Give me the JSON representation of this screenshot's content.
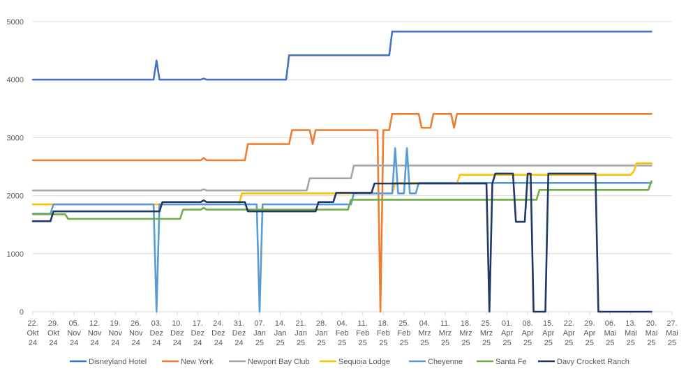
{
  "chart_data": {
    "type": "line",
    "title": "",
    "xlabel": "",
    "ylabel": "",
    "ylim": [
      0,
      5000
    ],
    "yticks": [
      0,
      1000,
      2000,
      3000,
      4000,
      5000
    ],
    "grid": true,
    "legend": "bottom",
    "x_range": [
      "2024-10-22",
      "2025-05-27"
    ],
    "xticks": [
      {
        "date": "2024-10-22",
        "top": "22.",
        "mid": "Okt",
        "bot": "24"
      },
      {
        "date": "2024-10-29",
        "top": "29.",
        "mid": "Okt",
        "bot": "24"
      },
      {
        "date": "2024-11-05",
        "top": "05.",
        "mid": "Nov",
        "bot": "24"
      },
      {
        "date": "2024-11-12",
        "top": "12.",
        "mid": "Nov",
        "bot": "24"
      },
      {
        "date": "2024-11-19",
        "top": "19.",
        "mid": "Nov",
        "bot": "24"
      },
      {
        "date": "2024-11-26",
        "top": "26.",
        "mid": "Nov",
        "bot": "24"
      },
      {
        "date": "2024-12-03",
        "top": "03.",
        "mid": "Dez",
        "bot": "24"
      },
      {
        "date": "2024-12-10",
        "top": "10.",
        "mid": "Dez",
        "bot": "24"
      },
      {
        "date": "2024-12-17",
        "top": "17.",
        "mid": "Dez",
        "bot": "24"
      },
      {
        "date": "2024-12-24",
        "top": "24.",
        "mid": "Dez",
        "bot": "24"
      },
      {
        "date": "2024-12-31",
        "top": "31.",
        "mid": "Dez",
        "bot": "24"
      },
      {
        "date": "2025-01-07",
        "top": "07.",
        "mid": "Jan",
        "bot": "25"
      },
      {
        "date": "2025-01-14",
        "top": "14.",
        "mid": "Jan",
        "bot": "25"
      },
      {
        "date": "2025-01-21",
        "top": "21.",
        "mid": "Jan",
        "bot": "25"
      },
      {
        "date": "2025-01-28",
        "top": "28.",
        "mid": "Jan",
        "bot": "25"
      },
      {
        "date": "2025-02-04",
        "top": "04.",
        "mid": "Feb",
        "bot": "25"
      },
      {
        "date": "2025-02-11",
        "top": "11.",
        "mid": "Feb",
        "bot": "25"
      },
      {
        "date": "2025-02-18",
        "top": "18.",
        "mid": "Feb",
        "bot": "25"
      },
      {
        "date": "2025-02-25",
        "top": "25.",
        "mid": "Feb",
        "bot": "25"
      },
      {
        "date": "2025-03-04",
        "top": "04.",
        "mid": "Mrz",
        "bot": "25"
      },
      {
        "date": "2025-03-11",
        "top": "11.",
        "mid": "Mrz",
        "bot": "25"
      },
      {
        "date": "2025-03-18",
        "top": "18.",
        "mid": "Mrz",
        "bot": "25"
      },
      {
        "date": "2025-03-25",
        "top": "25.",
        "mid": "Mrz",
        "bot": "25"
      },
      {
        "date": "2025-04-01",
        "top": "01.",
        "mid": "Apr",
        "bot": "25"
      },
      {
        "date": "2025-04-08",
        "top": "08.",
        "mid": "Apr",
        "bot": "25"
      },
      {
        "date": "2025-04-15",
        "top": "15.",
        "mid": "Apr",
        "bot": "25"
      },
      {
        "date": "2025-04-22",
        "top": "22.",
        "mid": "Apr",
        "bot": "25"
      },
      {
        "date": "2025-04-29",
        "top": "29.",
        "mid": "Apr",
        "bot": "25"
      },
      {
        "date": "2025-05-06",
        "top": "06.",
        "mid": "Mai",
        "bot": "25"
      },
      {
        "date": "2025-05-13",
        "top": "13.",
        "mid": "Mai",
        "bot": "25"
      },
      {
        "date": "2025-05-20",
        "top": "20.",
        "mid": "Mai",
        "bot": "25"
      },
      {
        "date": "2025-05-27",
        "top": "27.",
        "mid": "Mai",
        "bot": "25"
      }
    ],
    "series": [
      {
        "name": "Disneyland Hotel",
        "color": "#4472c4",
        "points": [
          [
            "2024-10-22",
            4000
          ],
          [
            "2024-12-02",
            4000
          ],
          [
            "2024-12-03",
            4330
          ],
          [
            "2024-12-04",
            4000
          ],
          [
            "2024-12-18",
            4000
          ],
          [
            "2024-12-19",
            4020
          ],
          [
            "2024-12-20",
            4000
          ],
          [
            "2025-01-16",
            4000
          ],
          [
            "2025-01-17",
            4420
          ],
          [
            "2025-02-20",
            4420
          ],
          [
            "2025-02-21",
            4830
          ],
          [
            "2025-05-20",
            4830
          ]
        ]
      },
      {
        "name": "New York",
        "color": "#ed7d31",
        "points": [
          [
            "2024-10-22",
            2610
          ],
          [
            "2024-12-18",
            2610
          ],
          [
            "2024-12-19",
            2650
          ],
          [
            "2024-12-20",
            2610
          ],
          [
            "2025-01-02",
            2610
          ],
          [
            "2025-01-03",
            2890
          ],
          [
            "2025-01-17",
            2890
          ],
          [
            "2025-01-18",
            3130
          ],
          [
            "2025-01-24",
            3130
          ],
          [
            "2025-01-25",
            2890
          ],
          [
            "2025-01-26",
            3130
          ],
          [
            "2025-02-16",
            3130
          ],
          [
            "2025-02-17",
            0
          ],
          [
            "2025-02-18",
            3130
          ],
          [
            "2025-02-20",
            3130
          ],
          [
            "2025-02-21",
            3410
          ],
          [
            "2025-03-02",
            3410
          ],
          [
            "2025-03-03",
            3170
          ],
          [
            "2025-03-06",
            3170
          ],
          [
            "2025-03-07",
            3410
          ],
          [
            "2025-03-13",
            3410
          ],
          [
            "2025-03-14",
            3170
          ],
          [
            "2025-03-15",
            3410
          ],
          [
            "2025-05-20",
            3410
          ]
        ]
      },
      {
        "name": "Newport Bay Club",
        "color": "#a5a5a5",
        "points": [
          [
            "2024-10-22",
            2090
          ],
          [
            "2024-12-18",
            2090
          ],
          [
            "2024-12-19",
            2110
          ],
          [
            "2024-12-20",
            2090
          ],
          [
            "2025-01-23",
            2090
          ],
          [
            "2025-01-24",
            2300
          ],
          [
            "2025-02-07",
            2300
          ],
          [
            "2025-02-08",
            2520
          ],
          [
            "2025-05-20",
            2520
          ]
        ]
      },
      {
        "name": "Sequoia Lodge",
        "color": "#ffc000",
        "points": [
          [
            "2024-10-22",
            1850
          ],
          [
            "2024-12-31",
            1850
          ],
          [
            "2025-01-01",
            2040
          ],
          [
            "2025-02-21",
            2040
          ],
          [
            "2025-02-22",
            2220
          ],
          [
            "2025-03-15",
            2220
          ],
          [
            "2025-03-16",
            2360
          ],
          [
            "2025-05-13",
            2360
          ],
          [
            "2025-05-14",
            2420
          ],
          [
            "2025-05-15",
            2560
          ],
          [
            "2025-05-20",
            2560
          ]
        ]
      },
      {
        "name": "Cheyenne",
        "color": "#5b9bd5",
        "points": [
          [
            "2024-10-22",
            1690
          ],
          [
            "2024-10-28",
            1690
          ],
          [
            "2024-10-29",
            1850
          ],
          [
            "2024-12-02",
            1850
          ],
          [
            "2024-12-03",
            0
          ],
          [
            "2024-12-04",
            1850
          ],
          [
            "2025-01-06",
            1850
          ],
          [
            "2025-01-07",
            0
          ],
          [
            "2025-01-08",
            1850
          ],
          [
            "2025-02-07",
            1850
          ],
          [
            "2025-02-08",
            2040
          ],
          [
            "2025-02-21",
            2040
          ],
          [
            "2025-02-22",
            2820
          ],
          [
            "2025-02-23",
            2040
          ],
          [
            "2025-02-25",
            2040
          ],
          [
            "2025-02-26",
            2820
          ],
          [
            "2025-02-27",
            2040
          ],
          [
            "2025-03-01",
            2040
          ],
          [
            "2025-03-02",
            2220
          ],
          [
            "2025-05-20",
            2220
          ]
        ]
      },
      {
        "name": "Santa Fe",
        "color": "#70ad47",
        "points": [
          [
            "2024-10-22",
            1680
          ],
          [
            "2024-11-02",
            1680
          ],
          [
            "2024-11-03",
            1600
          ],
          [
            "2024-12-11",
            1600
          ],
          [
            "2024-12-12",
            1760
          ],
          [
            "2024-12-18",
            1760
          ],
          [
            "2024-12-19",
            1790
          ],
          [
            "2024-12-20",
            1760
          ],
          [
            "2025-02-06",
            1760
          ],
          [
            "2025-02-07",
            1930
          ],
          [
            "2025-04-11",
            1930
          ],
          [
            "2025-04-12",
            2100
          ],
          [
            "2025-05-19",
            2100
          ],
          [
            "2025-05-20",
            2250
          ]
        ]
      },
      {
        "name": "Davy Crockett Ranch",
        "color": "#203864",
        "points": [
          [
            "2024-10-22",
            1560
          ],
          [
            "2024-10-28",
            1560
          ],
          [
            "2024-10-29",
            1730
          ],
          [
            "2024-12-04",
            1730
          ],
          [
            "2024-12-05",
            1890
          ],
          [
            "2024-12-18",
            1890
          ],
          [
            "2024-12-19",
            1920
          ],
          [
            "2024-12-20",
            1890
          ],
          [
            "2025-01-02",
            1890
          ],
          [
            "2025-01-03",
            1730
          ],
          [
            "2025-01-26",
            1730
          ],
          [
            "2025-01-27",
            1890
          ],
          [
            "2025-02-01",
            1890
          ],
          [
            "2025-02-02",
            2050
          ],
          [
            "2025-02-14",
            2050
          ],
          [
            "2025-02-15",
            2210
          ],
          [
            "2025-03-25",
            2210
          ],
          [
            "2025-03-26",
            0
          ],
          [
            "2025-03-27",
            2210
          ],
          [
            "2025-03-28",
            2380
          ],
          [
            "2025-04-03",
            2380
          ],
          [
            "2025-04-04",
            1550
          ],
          [
            "2025-04-07",
            1550
          ],
          [
            "2025-04-08",
            2380
          ],
          [
            "2025-04-09",
            2380
          ],
          [
            "2025-04-10",
            0
          ],
          [
            "2025-04-14",
            0
          ],
          [
            "2025-04-15",
            2380
          ],
          [
            "2025-05-01",
            2380
          ],
          [
            "2025-05-02",
            0
          ],
          [
            "2025-05-20",
            0
          ]
        ]
      }
    ]
  }
}
